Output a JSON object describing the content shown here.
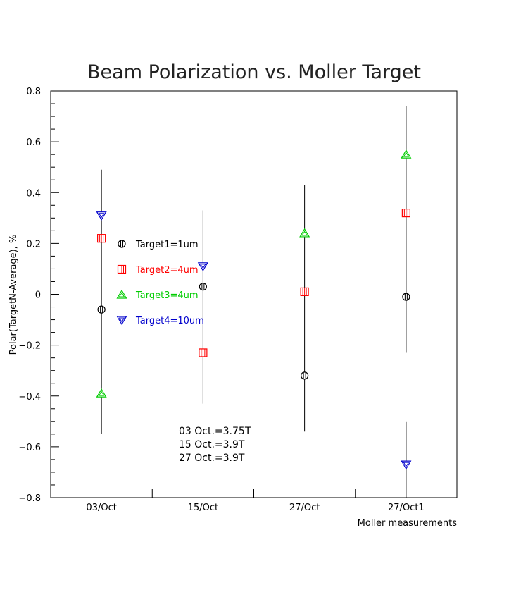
{
  "chart_data": {
    "type": "scatter",
    "title": "Beam Polarization vs. Moller Target",
    "xlabel": "Moller measurements",
    "ylabel": "Polar(TargetN-Average), %",
    "categories": [
      "03/Oct",
      "15/Oct",
      "27/Oct",
      "27/Oct1"
    ],
    "ylim": [
      -0.8,
      0.8
    ],
    "yticks": [
      -0.8,
      -0.6,
      -0.4,
      -0.2,
      0,
      0.2,
      0.4,
      0.6,
      0.8
    ],
    "ytick_labels": [
      "−0.8",
      "−0.6",
      "−0.4",
      "−0.2",
      "0",
      "0.2",
      "0.4",
      "0.6",
      "0.8"
    ],
    "error_bars": [
      {
        "category": "03/Oct",
        "low": -0.55,
        "high": 0.49
      },
      {
        "category": "15/Oct",
        "low": -0.43,
        "high": 0.33
      },
      {
        "category": "27/Oct",
        "low": -0.54,
        "high": 0.43
      },
      {
        "category": "27/Oct1",
        "low": -0.23,
        "high": 0.74
      },
      {
        "category": "27/Oct1",
        "low": -0.8,
        "high": -0.5
      }
    ],
    "series": [
      {
        "name": "Target1=1um",
        "color": "#000000",
        "marker": "circle",
        "values": [
          -0.06,
          0.03,
          -0.32,
          -0.01
        ]
      },
      {
        "name": "Target2=4um",
        "color": "#ff0000",
        "marker": "square",
        "values": [
          0.22,
          -0.23,
          0.01,
          0.32
        ]
      },
      {
        "name": "Target3=4um",
        "color": "#00cc00",
        "marker": "triangle-up",
        "values": [
          -0.39,
          null,
          0.24,
          0.55
        ]
      },
      {
        "name": "Target4=10um",
        "color": "#0000cc",
        "marker": "triangle-down",
        "values": [
          0.31,
          0.11,
          null,
          -0.67
        ]
      }
    ],
    "annotations": [
      "03 Oct.=3.75T",
      "15 Oct.=3.9T",
      "27 Oct.=3.9T"
    ],
    "legend_position": "center-left",
    "grid": false
  }
}
